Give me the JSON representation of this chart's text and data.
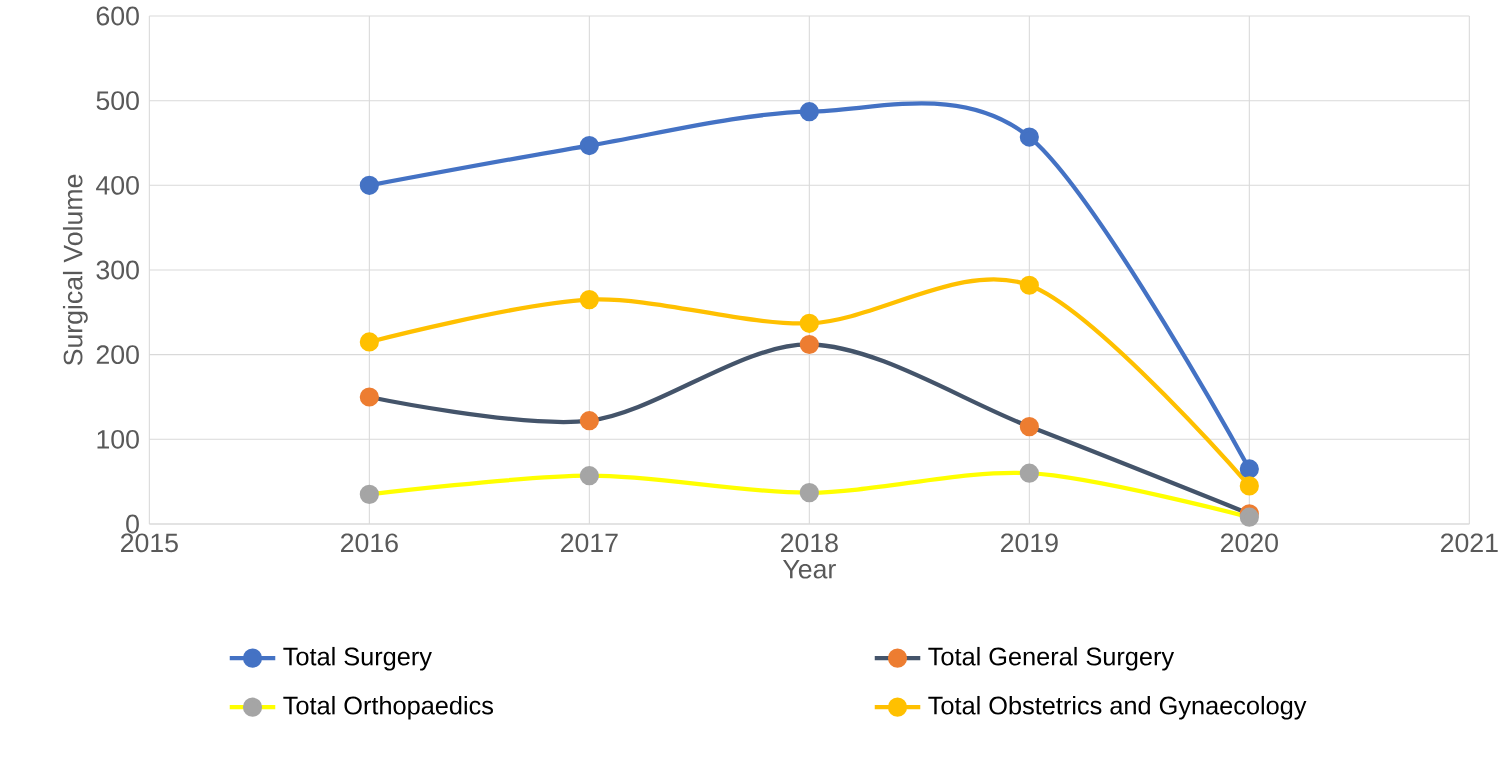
{
  "chart_data": {
    "type": "line",
    "xlabel": "Year",
    "ylabel": "Surgical Volume",
    "x": [
      2016,
      2017,
      2018,
      2019,
      2020
    ],
    "xlim": [
      2015,
      2021
    ],
    "xticks": [
      2015,
      2016,
      2017,
      2018,
      2019,
      2020,
      2021
    ],
    "ylim": [
      0,
      600
    ],
    "yticks": [
      0,
      100,
      200,
      300,
      400,
      500,
      600
    ],
    "grid": true,
    "legend": "bottom",
    "marker": "circle",
    "line_style": "solid",
    "series": [
      {
        "name": "Total Surgery",
        "color": "#4472c4",
        "colors": [
          "#4472c4",
          "#4472c4",
          "#4472c4",
          "#4472c4",
          "#4472c4"
        ],
        "values": [
          400,
          447,
          487,
          457,
          65
        ]
      },
      {
        "name": "Total General Surgery",
        "color": "#44546a",
        "colors": [
          "#ed7d31",
          "#ed7d31",
          "#ed7d31",
          "#ed7d31",
          "#ed7d31"
        ],
        "values": [
          150,
          122,
          212,
          115,
          12
        ]
      },
      {
        "name": "Total Orthopaedics",
        "color": "#ffff00",
        "colors": [
          "#a5a5a5",
          "#a5a5a5",
          "#a5a5a5",
          "#a5a5a5",
          "#a5a5a5"
        ],
        "values": [
          35,
          57,
          37,
          60,
          8
        ]
      },
      {
        "name": "Total Obstetrics and Gynaecology",
        "color": "#ffc000",
        "colors": [
          "#ffc000",
          "#ffc000",
          "#ffc000",
          "#ffc000",
          "#ffc000"
        ],
        "values": [
          215,
          265,
          237,
          282,
          45
        ]
      }
    ]
  }
}
